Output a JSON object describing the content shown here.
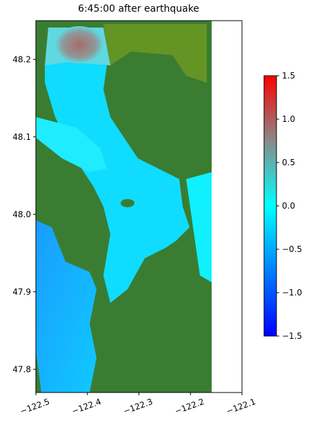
{
  "chart_data": {
    "type": "map",
    "title": "6:45:00 after earthquake",
    "xlim": [
      -122.5,
      -122.1
    ],
    "xticks": [
      {
        "value": -122.5,
        "label": "−122.5"
      },
      {
        "value": -122.4,
        "label": "−122.4"
      },
      {
        "value": -122.3,
        "label": "−122.3"
      },
      {
        "value": -122.2,
        "label": "−122.2"
      },
      {
        "value": -122.1,
        "label": "−122.1"
      }
    ],
    "ylim": [
      47.77,
      48.25
    ],
    "yticks": [
      47.8,
      47.9,
      {
        "value": 48,
        "label": "48.0"
      },
      48.1,
      48.2
    ],
    "colorbar": {
      "lim": [
        -1.5,
        1.5
      ],
      "ticks": [
        {
          "value": -1.5,
          "label": "−1.5"
        },
        {
          "value": -1,
          "label": "−1.0"
        },
        {
          "value": -0.5,
          "label": "−0.5"
        },
        {
          "value": 0,
          "label": "0.0"
        },
        0.5,
        {
          "value": 1,
          "label": "1.0"
        },
        1.5
      ]
    }
  }
}
